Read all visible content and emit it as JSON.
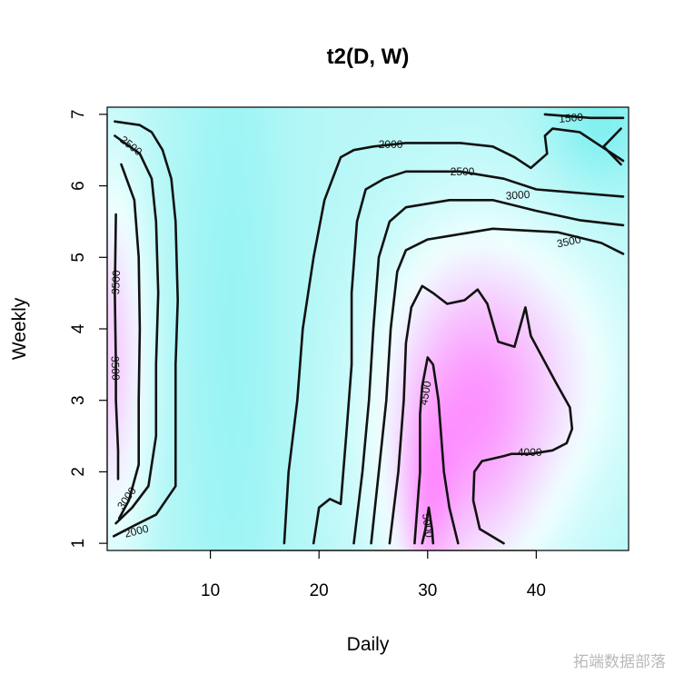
{
  "chart_data": {
    "type": "contour",
    "title": "t2(D, W)",
    "xlabel": "Daily",
    "ylabel": "Weekly",
    "xlim": [
      0.5,
      48.5
    ],
    "ylim": [
      0.9,
      7.1
    ],
    "x_ticks": [
      10,
      20,
      30,
      40
    ],
    "y_ticks": [
      1,
      2,
      3,
      4,
      5,
      6,
      7
    ],
    "fill_colors": {
      "low": "#80F0F0",
      "mid": "#F0FFFF",
      "high": "#FF80FF"
    },
    "contours": [
      {
        "level": 1500,
        "label": "1500",
        "lines": [
          [
            [
              40.8,
              7.0
            ],
            [
              45,
              6.95
            ],
            [
              48,
              6.95
            ]
          ],
          [
            [
              47.8,
              6.8
            ],
            [
              46.2,
              6.55
            ],
            [
              47.8,
              6.3
            ]
          ]
        ]
      },
      {
        "level": 2000,
        "label": "2000",
        "lines": [
          [
            [
              1.1,
              1.1
            ],
            [
              3,
              1.25
            ],
            [
              5,
              1.4
            ],
            [
              6.8,
              1.8
            ],
            [
              6.8,
              3.5
            ],
            [
              7,
              4.4
            ],
            [
              6.8,
              5.5
            ],
            [
              6.4,
              6.1
            ],
            [
              5.6,
              6.5
            ],
            [
              4.6,
              6.75
            ],
            [
              3.5,
              6.85
            ],
            [
              1.2,
              6.9
            ]
          ],
          [
            [
              16.8,
              1.0
            ],
            [
              17.2,
              2.0
            ],
            [
              18,
              3.0
            ],
            [
              18.5,
              4.0
            ],
            [
              19.5,
              5.0
            ],
            [
              20.5,
              5.8
            ],
            [
              22,
              6.4
            ],
            [
              23.2,
              6.5
            ],
            [
              25,
              6.55
            ],
            [
              28,
              6.6
            ],
            [
              33,
              6.6
            ],
            [
              36,
              6.55
            ],
            [
              38,
              6.4
            ],
            [
              39.5,
              6.25
            ],
            [
              41,
              6.45
            ],
            [
              40.8,
              6.7
            ],
            [
              41.5,
              6.8
            ],
            [
              44,
              6.75
            ],
            [
              46,
              6.55
            ],
            [
              48,
              6.35
            ]
          ]
        ]
      },
      {
        "level": 2500,
        "label": "2500",
        "lines": [
          [
            [
              1.3,
              1.28
            ],
            [
              2.8,
              1.5
            ],
            [
              4.3,
              1.8
            ],
            [
              5.0,
              2.5
            ],
            [
              5.0,
              3.5
            ],
            [
              5.2,
              4.5
            ],
            [
              5.0,
              5.5
            ],
            [
              4.6,
              6.1
            ],
            [
              3.5,
              6.45
            ],
            [
              1.2,
              6.7
            ]
          ],
          [
            [
              19.5,
              1.0
            ],
            [
              20.0,
              1.5
            ],
            [
              21,
              1.62
            ],
            [
              22,
              1.55
            ],
            [
              22.5,
              2.5
            ],
            [
              23,
              3.5
            ],
            [
              23,
              4.5
            ],
            [
              23.5,
              5.5
            ],
            [
              24.3,
              5.95
            ],
            [
              26,
              6.1
            ],
            [
              28,
              6.2
            ],
            [
              33,
              6.2
            ],
            [
              37,
              6.1
            ],
            [
              40,
              5.95
            ],
            [
              44,
              5.9
            ],
            [
              48,
              5.85
            ]
          ]
        ]
      },
      {
        "level": 3000,
        "label": "3000",
        "lines": [
          [
            [
              1.6,
              1.35
            ],
            [
              2.5,
              1.6
            ],
            [
              3.4,
              2.1
            ],
            [
              3.4,
              3.0
            ],
            [
              3.5,
              4.0
            ],
            [
              3.4,
              5.0
            ],
            [
              3.0,
              5.8
            ],
            [
              1.8,
              6.3
            ]
          ],
          [
            [
              23.2,
              1.0
            ],
            [
              24.0,
              2.0
            ],
            [
              24.6,
              3.0
            ],
            [
              25,
              4.0
            ],
            [
              25.5,
              5.0
            ],
            [
              26.5,
              5.5
            ],
            [
              28,
              5.7
            ],
            [
              32,
              5.8
            ],
            [
              36,
              5.8
            ],
            [
              40,
              5.65
            ],
            [
              44,
              5.52
            ],
            [
              48,
              5.45
            ]
          ]
        ]
      },
      {
        "level": 3500,
        "label": "3500",
        "lines": [
          [
            [
              1.5,
              1.9
            ],
            [
              1.5,
              2.3
            ],
            [
              1.3,
              3.0
            ],
            [
              1.3,
              3.5
            ],
            [
              1.2,
              4.5
            ],
            [
              1.3,
              5.6
            ]
          ],
          [
            [
              24.8,
              1.0
            ],
            [
              25.5,
              2.0
            ],
            [
              26.2,
              3.0
            ],
            [
              26.6,
              4.0
            ],
            [
              27.2,
              4.8
            ],
            [
              28,
              5.1
            ],
            [
              30,
              5.25
            ],
            [
              32,
              5.3
            ],
            [
              36,
              5.4
            ],
            [
              42,
              5.35
            ],
            [
              46,
              5.2
            ],
            [
              48,
              5.05
            ]
          ]
        ]
      },
      {
        "level": 4000,
        "label": "4000",
        "lines": [
          [
            [
              26.5,
              1.0
            ],
            [
              27.3,
              2.0
            ],
            [
              27.8,
              3.0
            ],
            [
              28,
              3.8
            ],
            [
              28.5,
              4.3
            ],
            [
              29.5,
              4.6
            ],
            [
              30.5,
              4.5
            ],
            [
              31.8,
              4.35
            ],
            [
              33.4,
              4.4
            ],
            [
              34.6,
              4.55
            ],
            [
              35.5,
              4.35
            ],
            [
              36.5,
              3.82
            ],
            [
              38.0,
              3.75
            ],
            [
              39,
              4.3
            ],
            [
              39.5,
              3.9
            ],
            [
              41.8,
              3.25
            ],
            [
              43.1,
              2.9
            ],
            [
              43.3,
              2.6
            ],
            [
              42.8,
              2.4
            ],
            [
              41.5,
              2.3
            ],
            [
              39.5,
              2.25
            ],
            [
              37.7,
              2.25
            ],
            [
              37.0,
              2.22
            ],
            [
              35,
              2.15
            ],
            [
              34.3,
              2.0
            ],
            [
              34.2,
              1.6
            ],
            [
              34.8,
              1.2
            ],
            [
              37.0,
              1.0
            ]
          ]
        ]
      },
      {
        "level": 4500,
        "label": "4500",
        "lines": [
          [
            [
              28.8,
              1.0
            ],
            [
              29.3,
              2.0
            ],
            [
              29.3,
              2.8
            ],
            [
              29.5,
              3.2
            ],
            [
              30.0,
              3.6
            ],
            [
              30.5,
              3.5
            ],
            [
              31.0,
              3.0
            ],
            [
              31.5,
              2.0
            ],
            [
              32.0,
              1.5
            ],
            [
              32.8,
              1.0
            ]
          ]
        ]
      },
      {
        "level": 5000,
        "label": "5000",
        "lines": [
          [
            [
              29.5,
              1.0
            ],
            [
              29.8,
              1.2
            ],
            [
              30.1,
              1.5
            ],
            [
              30.4,
              1.2
            ],
            [
              30.5,
              1.0
            ]
          ]
        ]
      }
    ],
    "contour_labels": [
      {
        "text": "1500",
        "x": 43.2,
        "y": 6.95,
        "angle": -5
      },
      {
        "text": "2000",
        "x": 26.6,
        "y": 6.58,
        "angle": 0
      },
      {
        "text": "2000",
        "x": 3.2,
        "y": 1.17,
        "angle": -14
      },
      {
        "text": "2500",
        "x": 33.2,
        "y": 6.2,
        "angle": 0
      },
      {
        "text": "2500",
        "x": 2.7,
        "y": 6.56,
        "angle": 38
      },
      {
        "text": "3000",
        "x": 38.3,
        "y": 5.87,
        "angle": -4
      },
      {
        "text": "3000",
        "x": 2.3,
        "y": 1.63,
        "angle": -55
      },
      {
        "text": "3500",
        "x": 43.0,
        "y": 5.22,
        "angle": -12
      },
      {
        "text": "3500",
        "x": 1.3,
        "y": 4.65,
        "angle": -88
      },
      {
        "text": "3500",
        "x": 1.25,
        "y": 3.45,
        "angle": 88
      },
      {
        "text": "4000",
        "x": 39.4,
        "y": 2.27,
        "angle": 0
      },
      {
        "text": "4500",
        "x": 29.8,
        "y": 3.1,
        "angle": -80
      },
      {
        "text": "5000",
        "x": 30.0,
        "y": 1.25,
        "angle": 82
      }
    ]
  },
  "watermark": "拓端数据部落"
}
